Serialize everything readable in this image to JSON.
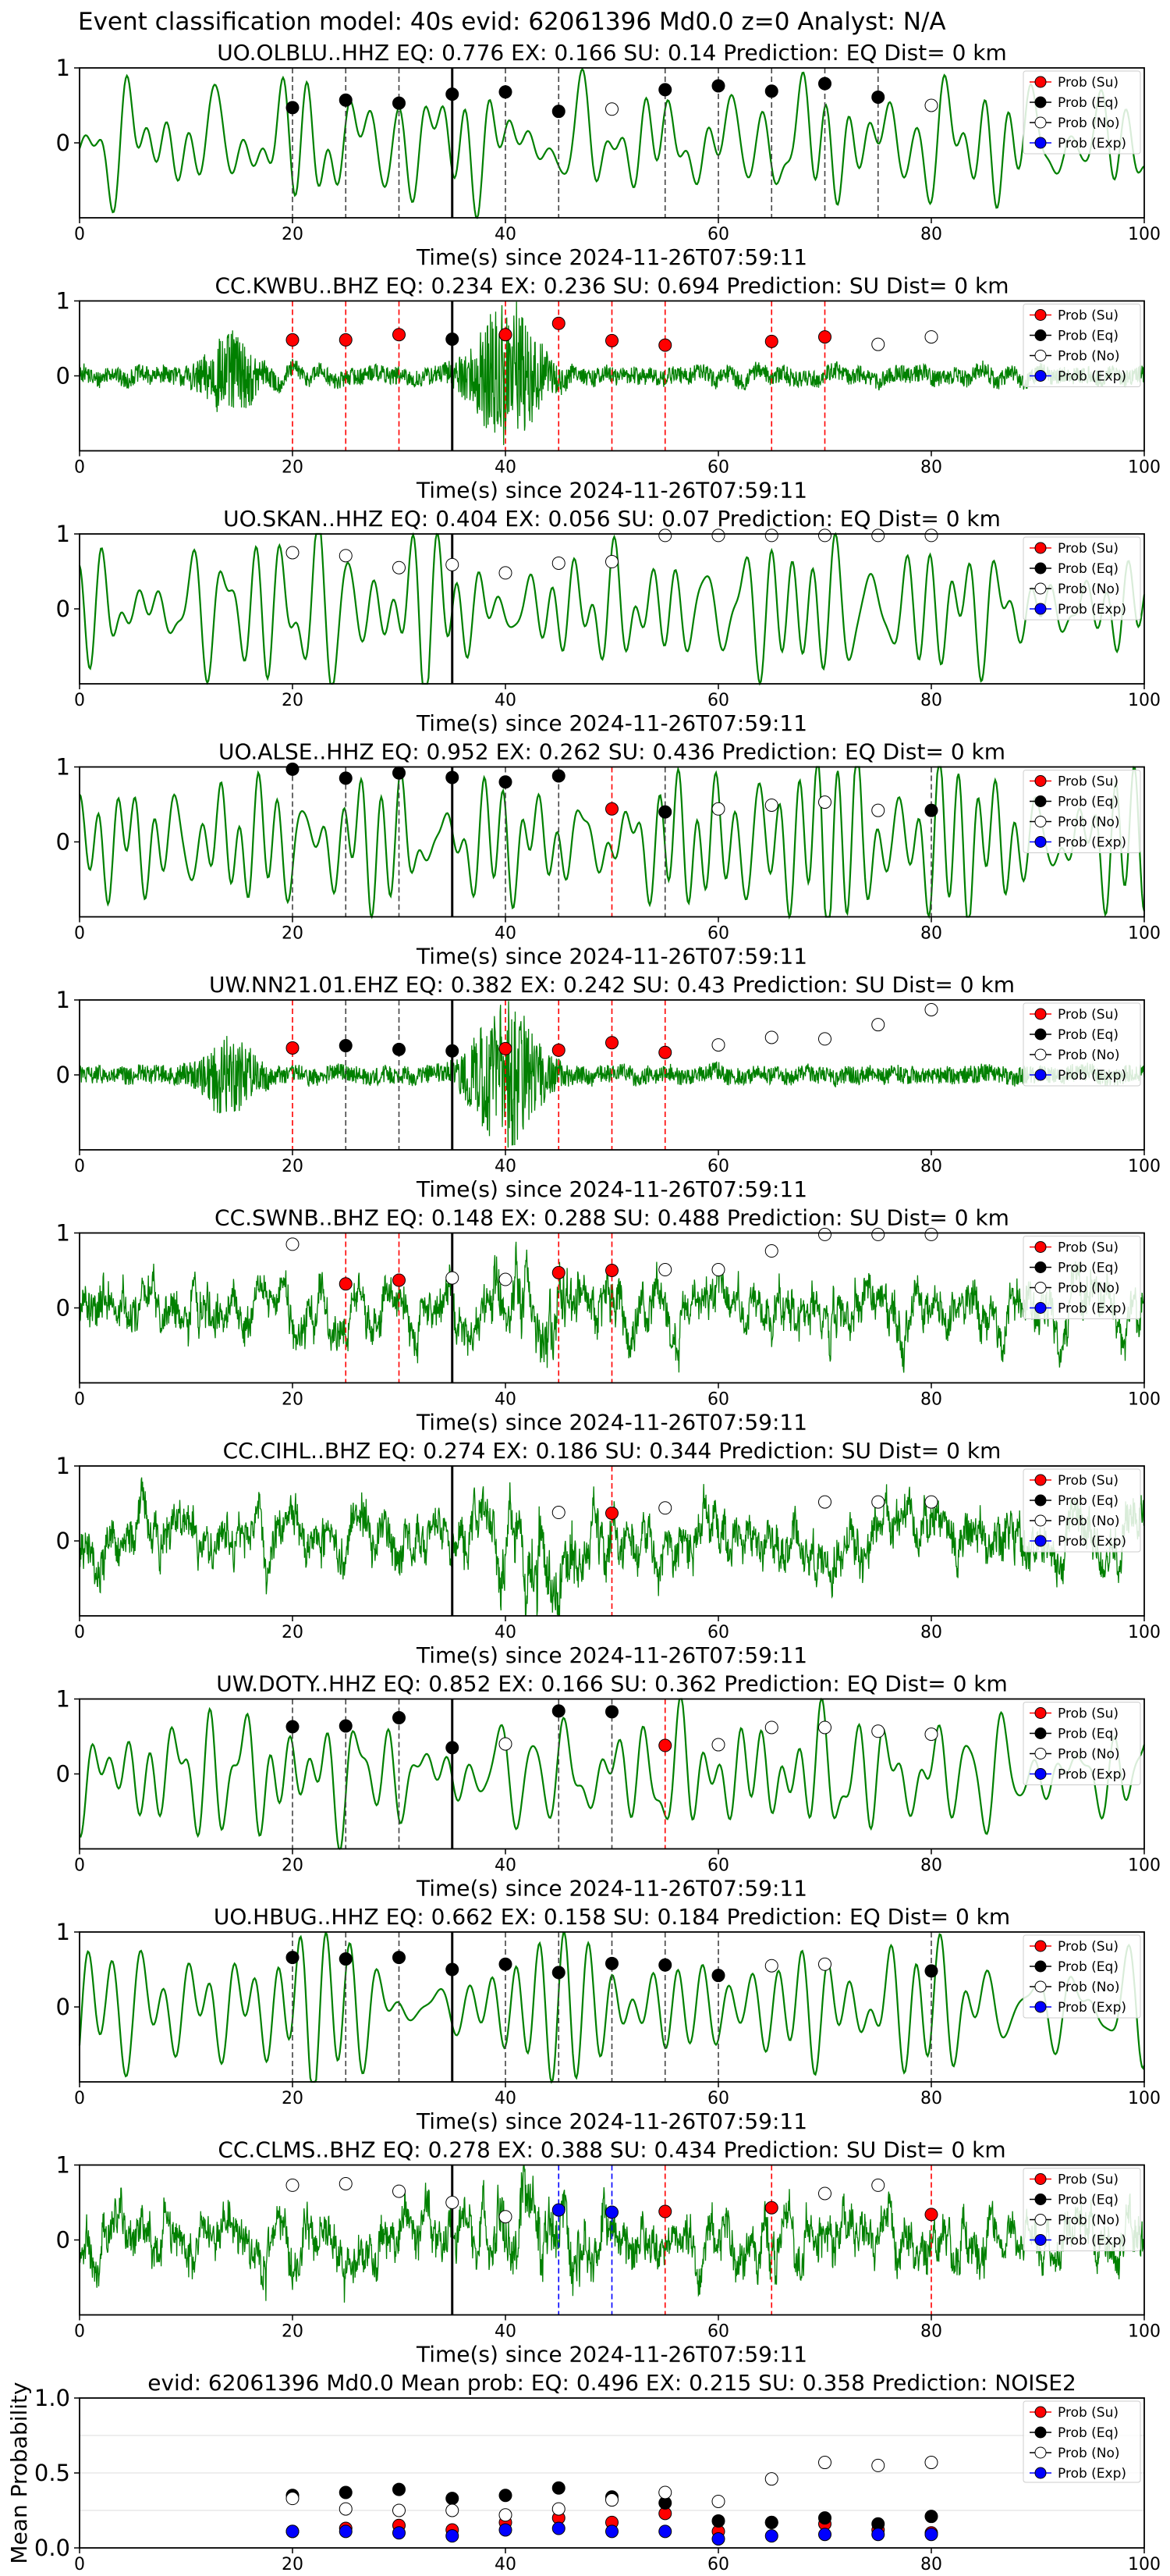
{
  "suptitle": "Event classification model: 40s evid: 62061396 Md0.0 z=0 Analyst: N/A",
  "xlabel": "Time(s) since 2024-11-26T07:59:11",
  "legend": [
    "Prob (Su)",
    "Prob (Eq)",
    "Prob (No)",
    "Prob (Exp)"
  ],
  "colors": {
    "su": "#ff0000",
    "eq": "#000000",
    "no": "#ffffff",
    "exp": "#0000ff",
    "trace": "#008000"
  },
  "chart_data": [
    {
      "type": "line",
      "title": "UO.OLBLU..HHZ   EQ: 0.776  EX: 0.166  SU: 0.14   Prediction: EQ    Dist= 0 km",
      "xlim": [
        0,
        100
      ],
      "ylim": [
        -1,
        1
      ],
      "xticks": [
        "0",
        "20",
        "40",
        "60",
        "80",
        "100"
      ],
      "yticks": [
        "0",
        "1"
      ],
      "trace_style": "smooth",
      "points": [
        [
          20,
          0.47,
          "eq"
        ],
        [
          25,
          0.57,
          "eq"
        ],
        [
          30,
          0.53,
          "eq"
        ],
        [
          35,
          0.65,
          "eq"
        ],
        [
          40,
          0.68,
          "eq"
        ],
        [
          45,
          0.42,
          "eq"
        ],
        [
          50,
          0.45,
          "no"
        ],
        [
          55,
          0.71,
          "eq"
        ],
        [
          60,
          0.76,
          "eq"
        ],
        [
          65,
          0.69,
          "eq"
        ],
        [
          70,
          0.79,
          "eq"
        ],
        [
          75,
          0.61,
          "eq"
        ],
        [
          80,
          0.5,
          "no"
        ]
      ]
    },
    {
      "type": "line",
      "title": "CC.KWBU..BHZ   EQ: 0.234  EX: 0.236  SU: 0.694   Prediction: SU    Dist= 0 km",
      "xlim": [
        0,
        100
      ],
      "ylim": [
        -1,
        1
      ],
      "xticks": [
        "0",
        "20",
        "40",
        "60",
        "80",
        "100"
      ],
      "yticks": [
        "0",
        "1"
      ],
      "trace_style": "burst",
      "points": [
        [
          20,
          0.48,
          "su"
        ],
        [
          25,
          0.48,
          "su"
        ],
        [
          30,
          0.55,
          "su"
        ],
        [
          35,
          0.49,
          "eq"
        ],
        [
          40,
          0.55,
          "su"
        ],
        [
          45,
          0.7,
          "su"
        ],
        [
          50,
          0.47,
          "su"
        ],
        [
          55,
          0.41,
          "su"
        ],
        [
          65,
          0.46,
          "su"
        ],
        [
          70,
          0.52,
          "su"
        ],
        [
          75,
          0.42,
          "no"
        ],
        [
          80,
          0.52,
          "no"
        ]
      ]
    },
    {
      "type": "line",
      "title": "UO.SKAN..HHZ   EQ: 0.404  EX: 0.056  SU: 0.07   Prediction: EQ    Dist= 0 km",
      "xlim": [
        0,
        100
      ],
      "ylim": [
        -1,
        1
      ],
      "xticks": [
        "0",
        "20",
        "40",
        "60",
        "80",
        "100"
      ],
      "yticks": [
        "0",
        "1"
      ],
      "trace_style": "smooth",
      "points": [
        [
          20,
          0.75,
          "no"
        ],
        [
          25,
          0.71,
          "no"
        ],
        [
          30,
          0.55,
          "no"
        ],
        [
          35,
          0.59,
          "no"
        ],
        [
          40,
          0.48,
          "no"
        ],
        [
          45,
          0.61,
          "no"
        ],
        [
          50,
          0.63,
          "no"
        ],
        [
          55,
          0.98,
          "no"
        ],
        [
          60,
          0.98,
          "no"
        ],
        [
          65,
          0.98,
          "no"
        ],
        [
          70,
          0.98,
          "no"
        ],
        [
          75,
          0.98,
          "no"
        ],
        [
          80,
          0.98,
          "no"
        ]
      ]
    },
    {
      "type": "line",
      "title": "UO.ALSE..HHZ   EQ: 0.952  EX: 0.262  SU: 0.436   Prediction: EQ    Dist= 0 km",
      "xlim": [
        0,
        100
      ],
      "ylim": [
        -1,
        1
      ],
      "xticks": [
        "0",
        "20",
        "40",
        "60",
        "80",
        "100"
      ],
      "yticks": [
        "0",
        "1"
      ],
      "trace_style": "smooth",
      "points": [
        [
          20,
          0.97,
          "eq"
        ],
        [
          25,
          0.85,
          "eq"
        ],
        [
          30,
          0.92,
          "eq"
        ],
        [
          35,
          0.86,
          "eq"
        ],
        [
          40,
          0.8,
          "eq"
        ],
        [
          45,
          0.88,
          "eq"
        ],
        [
          50,
          0.44,
          "su"
        ],
        [
          55,
          0.4,
          "eq"
        ],
        [
          60,
          0.44,
          "no"
        ],
        [
          65,
          0.49,
          "no"
        ],
        [
          70,
          0.53,
          "no"
        ],
        [
          75,
          0.42,
          "no"
        ],
        [
          80,
          0.42,
          "eq"
        ]
      ]
    },
    {
      "type": "line",
      "title": "UW.NN21.01.EHZ   EQ: 0.382  EX: 0.242  SU: 0.43   Prediction: SU    Dist= 0 km",
      "xlim": [
        0,
        100
      ],
      "ylim": [
        -1,
        1
      ],
      "xticks": [
        "0",
        "20",
        "40",
        "60",
        "80",
        "100"
      ],
      "yticks": [
        "0",
        "1"
      ],
      "trace_style": "burst",
      "points": [
        [
          20,
          0.36,
          "su"
        ],
        [
          25,
          0.39,
          "eq"
        ],
        [
          30,
          0.34,
          "eq"
        ],
        [
          35,
          0.32,
          "eq"
        ],
        [
          40,
          0.35,
          "su"
        ],
        [
          45,
          0.33,
          "su"
        ],
        [
          50,
          0.43,
          "su"
        ],
        [
          55,
          0.3,
          "su"
        ],
        [
          60,
          0.4,
          "no"
        ],
        [
          65,
          0.5,
          "no"
        ],
        [
          70,
          0.48,
          "no"
        ],
        [
          75,
          0.67,
          "no"
        ],
        [
          80,
          0.87,
          "no"
        ]
      ]
    },
    {
      "type": "line",
      "title": "CC.SWNB..BHZ   EQ: 0.148  EX: 0.288  SU: 0.488   Prediction: SU    Dist= 0 km",
      "xlim": [
        0,
        100
      ],
      "ylim": [
        -1,
        1
      ],
      "xticks": [
        "0",
        "20",
        "40",
        "60",
        "80",
        "100"
      ],
      "yticks": [
        "0",
        "1"
      ],
      "trace_style": "noisy",
      "points": [
        [
          20,
          0.85,
          "no"
        ],
        [
          25,
          0.32,
          "su"
        ],
        [
          30,
          0.37,
          "su"
        ],
        [
          35,
          0.4,
          "no"
        ],
        [
          40,
          0.38,
          "no"
        ],
        [
          45,
          0.47,
          "su"
        ],
        [
          50,
          0.5,
          "su"
        ],
        [
          55,
          0.51,
          "no"
        ],
        [
          60,
          0.51,
          "no"
        ],
        [
          65,
          0.76,
          "no"
        ],
        [
          70,
          0.98,
          "no"
        ],
        [
          75,
          0.98,
          "no"
        ],
        [
          80,
          0.98,
          "no"
        ]
      ]
    },
    {
      "type": "line",
      "title": "CC.CIHL..BHZ   EQ: 0.274  EX: 0.186  SU: 0.344   Prediction: SU    Dist= 0 km",
      "xlim": [
        0,
        100
      ],
      "ylim": [
        -1,
        1
      ],
      "xticks": [
        "0",
        "20",
        "40",
        "60",
        "80",
        "100"
      ],
      "yticks": [
        "0",
        "1"
      ],
      "trace_style": "noisy",
      "points": [
        [
          45,
          0.38,
          "no"
        ],
        [
          50,
          0.37,
          "su"
        ],
        [
          55,
          0.44,
          "no"
        ],
        [
          70,
          0.52,
          "no"
        ],
        [
          75,
          0.52,
          "no"
        ],
        [
          80,
          0.52,
          "no"
        ]
      ]
    },
    {
      "type": "line",
      "title": "UW.DOTY..HHZ   EQ: 0.852  EX: 0.166  SU: 0.362   Prediction: EQ    Dist= 0 km",
      "xlim": [
        0,
        100
      ],
      "ylim": [
        -1,
        1
      ],
      "xticks": [
        "0",
        "20",
        "40",
        "60",
        "80",
        "100"
      ],
      "yticks": [
        "0",
        "1"
      ],
      "trace_style": "smooth",
      "points": [
        [
          20,
          0.63,
          "eq"
        ],
        [
          25,
          0.64,
          "eq"
        ],
        [
          30,
          0.75,
          "eq"
        ],
        [
          35,
          0.35,
          "eq"
        ],
        [
          40,
          0.4,
          "no"
        ],
        [
          45,
          0.84,
          "eq"
        ],
        [
          50,
          0.83,
          "eq"
        ],
        [
          55,
          0.38,
          "su"
        ],
        [
          60,
          0.39,
          "no"
        ],
        [
          65,
          0.62,
          "no"
        ],
        [
          70,
          0.62,
          "no"
        ],
        [
          75,
          0.57,
          "no"
        ],
        [
          80,
          0.53,
          "no"
        ]
      ]
    },
    {
      "type": "line",
      "title": "UO.HBUG..HHZ   EQ: 0.662  EX: 0.158  SU: 0.184   Prediction: EQ    Dist= 0 km",
      "xlim": [
        0,
        100
      ],
      "ylim": [
        -1,
        1
      ],
      "xticks": [
        "0",
        "20",
        "40",
        "60",
        "80",
        "100"
      ],
      "yticks": [
        "0",
        "1"
      ],
      "trace_style": "smooth",
      "points": [
        [
          20,
          0.66,
          "eq"
        ],
        [
          25,
          0.64,
          "eq"
        ],
        [
          30,
          0.66,
          "eq"
        ],
        [
          35,
          0.5,
          "eq"
        ],
        [
          40,
          0.57,
          "eq"
        ],
        [
          45,
          0.46,
          "eq"
        ],
        [
          50,
          0.58,
          "eq"
        ],
        [
          55,
          0.56,
          "eq"
        ],
        [
          60,
          0.42,
          "eq"
        ],
        [
          65,
          0.55,
          "no"
        ],
        [
          70,
          0.57,
          "no"
        ],
        [
          80,
          0.48,
          "eq"
        ]
      ]
    },
    {
      "type": "line",
      "title": "CC.CLMS..BHZ   EQ: 0.278  EX: 0.388  SU: 0.434   Prediction: SU    Dist= 0 km",
      "xlim": [
        0,
        100
      ],
      "ylim": [
        -1,
        1
      ],
      "xticks": [
        "0",
        "20",
        "40",
        "60",
        "80",
        "100"
      ],
      "yticks": [
        "0",
        "1"
      ],
      "trace_style": "noisy",
      "points": [
        [
          20,
          0.73,
          "no"
        ],
        [
          25,
          0.75,
          "no"
        ],
        [
          30,
          0.65,
          "no"
        ],
        [
          35,
          0.5,
          "no"
        ],
        [
          40,
          0.31,
          "no"
        ],
        [
          45,
          0.4,
          "exp"
        ],
        [
          50,
          0.37,
          "exp"
        ],
        [
          55,
          0.38,
          "su"
        ],
        [
          65,
          0.43,
          "su"
        ],
        [
          70,
          0.62,
          "no"
        ],
        [
          75,
          0.73,
          "no"
        ],
        [
          80,
          0.34,
          "su"
        ]
      ]
    },
    {
      "type": "scatter",
      "title": "evid: 62061396  Md0.0   Mean prob:   EQ: 0.496  EX: 0.215  SU: 0.358   Prediction: NOISE2",
      "ylabel": "Mean Probability",
      "xlim": [
        0,
        100
      ],
      "ylim": [
        0,
        1
      ],
      "xticks": [
        "0",
        "20",
        "40",
        "60",
        "80",
        "100"
      ],
      "yticks": [
        "0.0",
        "0.5",
        "1.0"
      ],
      "series": [
        {
          "name": "Prob (Su)",
          "key": "su",
          "x": [
            20,
            25,
            30,
            35,
            40,
            45,
            50,
            55,
            60,
            65,
            70,
            75,
            80
          ],
          "y": [
            0.11,
            0.13,
            0.15,
            0.12,
            0.17,
            0.2,
            0.17,
            0.23,
            0.11,
            0.17,
            0.16,
            0.12,
            0.1
          ]
        },
        {
          "name": "Prob (Eq)",
          "key": "eq",
          "x": [
            20,
            25,
            30,
            35,
            40,
            45,
            50,
            55,
            60,
            65,
            70,
            75,
            80
          ],
          "y": [
            0.35,
            0.37,
            0.39,
            0.33,
            0.35,
            0.4,
            0.34,
            0.3,
            0.18,
            0.17,
            0.2,
            0.16,
            0.21
          ]
        },
        {
          "name": "Prob (No)",
          "key": "no",
          "x": [
            20,
            25,
            30,
            35,
            40,
            45,
            50,
            55,
            60,
            65,
            70,
            75,
            80
          ],
          "y": [
            0.33,
            0.26,
            0.25,
            0.25,
            0.22,
            0.26,
            0.32,
            0.37,
            0.31,
            0.46,
            0.57,
            0.55,
            0.57
          ]
        },
        {
          "name": "Prob (Exp)",
          "key": "exp",
          "x": [
            20,
            25,
            30,
            35,
            40,
            45,
            50,
            55,
            60,
            65,
            70,
            75,
            80
          ],
          "y": [
            0.11,
            0.11,
            0.1,
            0.08,
            0.12,
            0.13,
            0.11,
            0.11,
            0.06,
            0.08,
            0.09,
            0.09,
            0.09
          ]
        }
      ]
    }
  ]
}
